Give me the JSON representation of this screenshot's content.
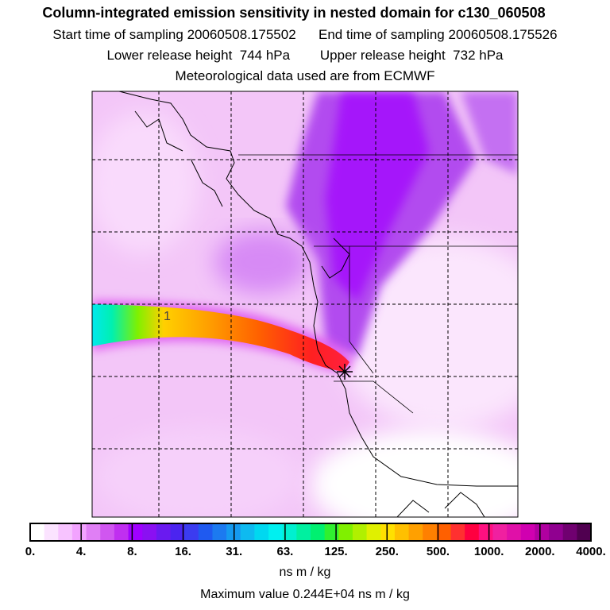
{
  "header": {
    "title": "Column-integrated emission sensitivity in nested domain for c130_060508",
    "sampling_start_label": "Start time of sampling",
    "sampling_start": "20060508.175502",
    "sampling_end_label": "End time of sampling",
    "sampling_end": "20060508.175526",
    "lower_release_label": "Lower release height",
    "lower_release": "744 hPa",
    "upper_release_label": "Upper release height",
    "upper_release": "732 hPa",
    "met_data": "Meteorological data used are from ECMWF"
  },
  "map": {
    "plume_label": "1",
    "release_marker": "release-point"
  },
  "colorbar": {
    "tick_labels": [
      "0.",
      "4.",
      "8.",
      "16.",
      "31.",
      "63.",
      "125.",
      "250.",
      "500.",
      "1000.",
      "2000.",
      "4000."
    ],
    "colors": [
      "#ffffff",
      "#fbe3ff",
      "#f7c3ff",
      "#f2a3ff",
      "#e07ff5",
      "#d056f0",
      "#c02ff0",
      "#a000ff",
      "#8a10f2",
      "#6a1af0",
      "#4b24f0",
      "#3b3cf0",
      "#1f5af0",
      "#1c7af0",
      "#159af0",
      "#0ebaf0",
      "#00d8f0",
      "#00f0f0",
      "#00f0d0",
      "#00f0a0",
      "#00f070",
      "#30f030",
      "#80f000",
      "#b0f000",
      "#e0f000",
      "#ffe000",
      "#ffc000",
      "#ffa000",
      "#ff8000",
      "#ff6000",
      "#ff3030",
      "#ff0040",
      "#ff1080",
      "#f020a0",
      "#e010a8",
      "#d000b0",
      "#b000a0",
      "#900090",
      "#700070",
      "#500050"
    ],
    "units": "ns m / kg"
  },
  "footer": {
    "max_value_label": "Maximum value",
    "max_value": "0.244E+04",
    "max_value_units": "ns m / kg"
  }
}
